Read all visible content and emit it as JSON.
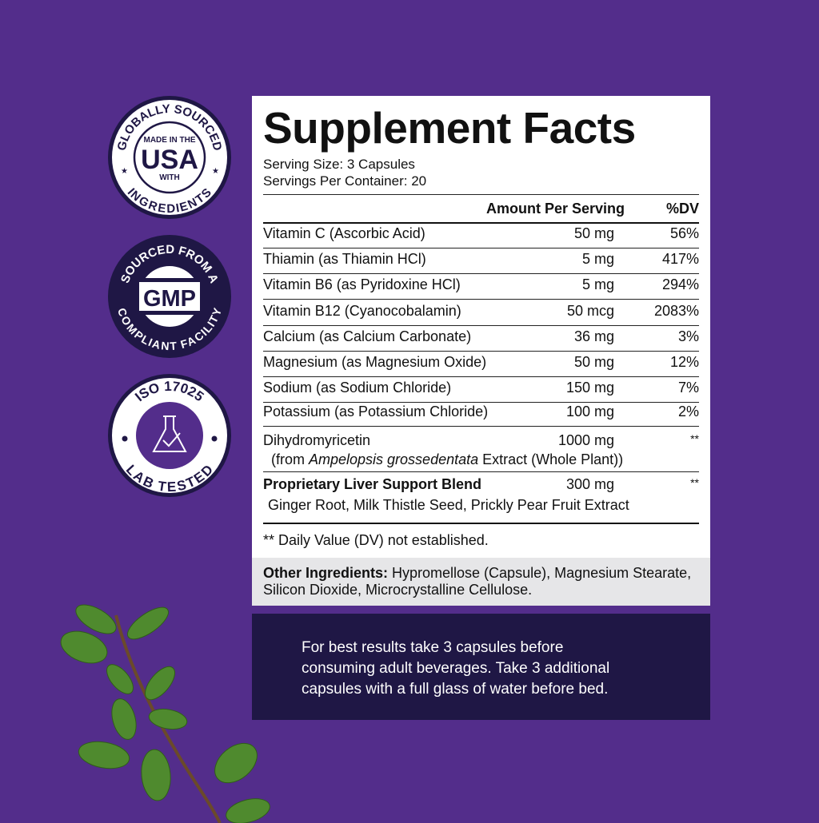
{
  "badges": [
    {
      "top_text": "GLOBALLY SOURCED",
      "bottom_text": "INGREDIENTS",
      "line1": "MADE IN THE",
      "center": "USA",
      "line2": "WITH"
    },
    {
      "top_text": "SOURCED FROM A",
      "bottom_text": "COMPLIANT FACILITY",
      "center": "GMP"
    },
    {
      "top_text": "ISO 17025",
      "bottom_text": "LAB TESTED",
      "icon": "flask-check-icon"
    }
  ],
  "facts": {
    "title": "Supplement Facts",
    "serving_size": "Serving Size: 3 Capsules",
    "servings_per_container": "Servings Per Container: 20",
    "col_amount": "Amount Per Serving",
    "col_dv": "%DV",
    "rows": [
      {
        "name": "Vitamin C (Ascorbic Acid)",
        "amount": "50 mg",
        "dv": "56%"
      },
      {
        "name": "Thiamin (as Thiamin HCl)",
        "amount": "5 mg",
        "dv": "417%"
      },
      {
        "name": "Vitamin B6 (as Pyridoxine HCl)",
        "amount": "5 mg",
        "dv": "294%"
      },
      {
        "name": "Vitamin B12 (Cyanocobalamin)",
        "amount": "50 mcg",
        "dv": "2083%"
      },
      {
        "name": "Calcium (as Calcium Carbonate)",
        "amount": "36 mg",
        "dv": "3%"
      },
      {
        "name": "Magnesium (as Magnesium Oxide)",
        "amount": "50 mg",
        "dv": "12%"
      },
      {
        "name": "Sodium (as Sodium Chloride)",
        "amount": "150 mg",
        "dv": "7%"
      },
      {
        "name": "Potassium (as Potassium Chloride)",
        "amount": "100 mg",
        "dv": "2%"
      }
    ],
    "dhm": {
      "name": "Dihydromyricetin",
      "amount": "1000 mg",
      "dv": "**",
      "sub_pre": "(from ",
      "sub_italic": "Ampelopsis grossedentata",
      "sub_post": " Extract (Whole Plant))"
    },
    "blend": {
      "name": "Proprietary Liver Support Blend",
      "amount": "300 mg",
      "dv": "**",
      "ingredients": "Ginger Root, Milk Thistle Seed, Prickly Pear Fruit Extract"
    },
    "footnote": "** Daily Value (DV) not established."
  },
  "other": {
    "label": "Other Ingredients:",
    "text": " Hypromellose (Capsule), Magnesium Stearate, Silicon Dioxide, Microcrystalline Cellulose."
  },
  "directions": {
    "line1": "For best results take 3 capsules before",
    "line2": "consuming adult beverages. Take 3 additional",
    "line3": "capsules with a full glass of water before bed."
  },
  "colors": {
    "background": "#532d8b",
    "navy": "#1f1745",
    "leaf": "#4f8a2e"
  }
}
